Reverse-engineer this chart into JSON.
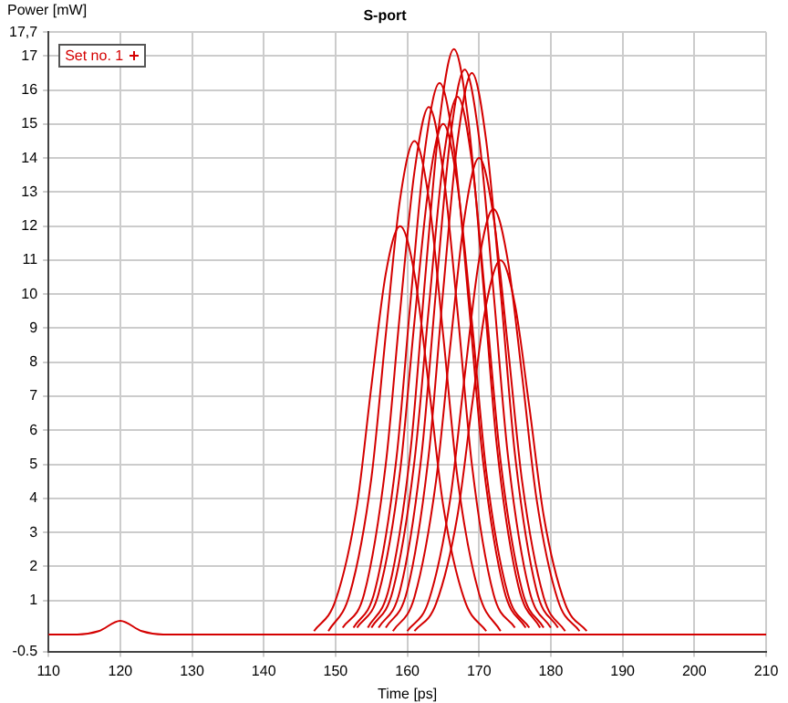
{
  "chart_data": {
    "type": "line",
    "title": "S-port",
    "xlabel": "Time [ps]",
    "ylabel": "Power [mW]",
    "xlim": [
      110,
      210
    ],
    "xticks": [
      110,
      120,
      130,
      140,
      150,
      160,
      170,
      180,
      190,
      200,
      210
    ],
    "ylim": [
      -0.5,
      17.7
    ],
    "yticks": [
      -0.5,
      1,
      2,
      3,
      4,
      5,
      6,
      7,
      8,
      9,
      10,
      11,
      12,
      13,
      14,
      15,
      16,
      17,
      {
        "value": 17.7,
        "label": "17,7"
      }
    ],
    "grid": true,
    "legend": "top left",
    "marker": "none",
    "line_style": "solid",
    "series": [
      {
        "name": "Set no. 1",
        "color": "#d40000",
        "x": [
          110,
          114,
          117,
          120,
          123,
          126,
          130,
          140,
          150,
          160,
          170,
          180,
          190,
          200,
          210
        ],
        "values": [
          0,
          0,
          0.1,
          0.4,
          0.1,
          0,
          0,
          0,
          0,
          0,
          0,
          0,
          0,
          0,
          0
        ]
      },
      {
        "color": "#d40000",
        "x": [
          149,
          152,
          155,
          157,
          159,
          161,
          163,
          165,
          167,
          170,
          173
        ],
        "values": [
          0.1,
          1.2,
          4.6,
          8.8,
          12.8,
          14.5,
          12.8,
          8.8,
          4.6,
          1.2,
          0.1
        ]
      },
      {
        "color": "#d40000",
        "x": [
          151,
          154,
          157,
          159,
          161,
          163,
          165,
          167,
          169,
          172,
          175
        ],
        "values": [
          0.2,
          1.2,
          5.0,
          9.5,
          13.6,
          15.5,
          13.6,
          9.5,
          5.0,
          1.2,
          0.2
        ]
      },
      {
        "color": "#d40000",
        "x": [
          152.5,
          155.5,
          158.5,
          160.5,
          162.5,
          164.5,
          166.5,
          168.5,
          170.5,
          173.5,
          176.5
        ],
        "values": [
          0.2,
          1.3,
          5.2,
          9.9,
          14.3,
          16.2,
          14.3,
          9.9,
          5.2,
          1.3,
          0.2
        ]
      },
      {
        "color": "#d40000",
        "x": [
          154.5,
          157.5,
          160.5,
          162.5,
          164.5,
          166.5,
          168.5,
          170.5,
          172.5,
          175.5,
          178.5
        ],
        "values": [
          0.2,
          1.4,
          5.5,
          10.5,
          15.1,
          17.2,
          15.1,
          10.5,
          5.5,
          1.4,
          0.2
        ]
      },
      {
        "color": "#d40000",
        "x": [
          156,
          159,
          162,
          164,
          166,
          168,
          170,
          172,
          174,
          177,
          180
        ],
        "values": [
          0.2,
          1.3,
          5.3,
          10.1,
          14.6,
          16.6,
          14.6,
          10.1,
          5.3,
          1.3,
          0.2
        ]
      },
      {
        "color": "#d40000",
        "x": [
          157,
          160,
          163,
          165,
          167,
          169,
          171,
          173,
          175,
          178,
          181
        ],
        "values": [
          0.2,
          1.3,
          5.3,
          10.1,
          14.5,
          16.5,
          14.5,
          10.1,
          5.3,
          1.3,
          0.2
        ]
      },
      {
        "color": "#d40000",
        "x": [
          155,
          158,
          161,
          163,
          165,
          167,
          169,
          171,
          173,
          176,
          179
        ],
        "values": [
          0.2,
          1.3,
          5.1,
          9.6,
          13.9,
          15.8,
          13.9,
          9.6,
          5.1,
          1.3,
          0.2
        ]
      },
      {
        "color": "#d40000",
        "x": [
          153,
          156,
          159,
          161,
          163,
          165,
          167,
          169,
          171,
          174,
          177
        ],
        "values": [
          0.2,
          1.2,
          4.8,
          9.2,
          13.2,
          15.0,
          13.2,
          9.2,
          4.8,
          1.2,
          0.2
        ]
      },
      {
        "color": "#d40000",
        "x": [
          158,
          161,
          164,
          166,
          168,
          170,
          172,
          174,
          176,
          179,
          182
        ],
        "values": [
          0.1,
          1.1,
          4.5,
          8.5,
          12.3,
          14.0,
          12.3,
          8.5,
          4.5,
          1.1,
          0.1
        ]
      },
      {
        "color": "#d40000",
        "x": [
          160,
          163,
          166,
          168,
          170,
          172,
          174,
          176,
          178,
          181,
          184
        ],
        "values": [
          0.1,
          1.0,
          4.0,
          7.6,
          11.0,
          12.5,
          11.0,
          7.6,
          4.0,
          1.0,
          0.1
        ]
      },
      {
        "color": "#d40000",
        "x": [
          147,
          150,
          153,
          155,
          157,
          159,
          161,
          163,
          165,
          168,
          171
        ],
        "values": [
          0.1,
          1.0,
          3.8,
          7.3,
          10.6,
          12.0,
          10.6,
          7.3,
          3.8,
          1.0,
          0.1
        ]
      },
      {
        "color": "#d40000",
        "x": [
          161,
          164,
          167,
          169,
          171,
          173,
          175,
          177,
          179,
          182,
          185
        ],
        "values": [
          0.1,
          0.9,
          3.5,
          6.7,
          9.7,
          11.0,
          9.7,
          6.7,
          3.5,
          0.9,
          0.1
        ]
      }
    ]
  }
}
